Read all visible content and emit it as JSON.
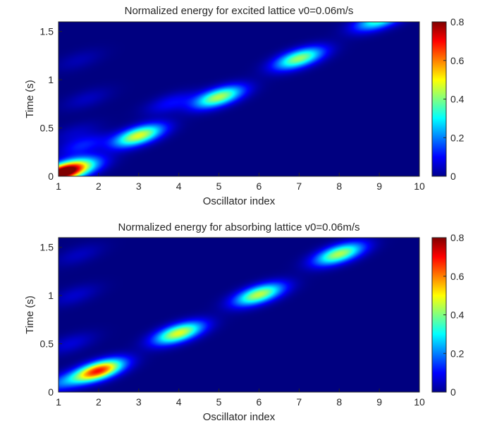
{
  "chart_data": [
    {
      "type": "heatmap",
      "title": "Normalized energy for excited lattice v0=0.06m/s",
      "xlabel": "Oscillator index",
      "ylabel": "Time (s)",
      "xlim": [
        1,
        10
      ],
      "ylim": [
        0,
        1.6
      ],
      "xticks": [
        "1",
        "2",
        "3",
        "4",
        "5",
        "6",
        "7",
        "8",
        "9",
        "10"
      ],
      "yticks": [
        "0",
        "0.5",
        "1",
        "1.5"
      ],
      "colorbar": {
        "range": [
          0,
          0.8
        ],
        "ticks": [
          "0",
          "0.2",
          "0.4",
          "0.6",
          "0.8"
        ],
        "colormap": "jet"
      },
      "blobs": [
        {
          "x": 1.05,
          "t": 0.03,
          "value": 0.8
        },
        {
          "x": 1.6,
          "t": 0.08,
          "value": 0.18
        },
        {
          "x": 1.3,
          "t": 0.1,
          "value": 0.12
        },
        {
          "x": 3.0,
          "t": 0.42,
          "value": 0.48
        },
        {
          "x": 1.6,
          "t": 0.32,
          "value": 0.12
        },
        {
          "x": 1.4,
          "t": 0.45,
          "value": 0.05
        },
        {
          "x": 5.0,
          "t": 0.82,
          "value": 0.44
        },
        {
          "x": 3.8,
          "t": 0.76,
          "value": 0.1
        },
        {
          "x": 1.7,
          "t": 0.8,
          "value": 0.05
        },
        {
          "x": 7.0,
          "t": 1.22,
          "value": 0.42
        },
        {
          "x": 1.5,
          "t": 1.2,
          "value": 0.04
        },
        {
          "x": 9.0,
          "t": 1.62,
          "value": 0.35
        }
      ]
    },
    {
      "type": "heatmap",
      "title": "Normalized energy for absorbing lattice v0=0.06m/s",
      "xlabel": "Oscillator index",
      "ylabel": "Time (s)",
      "xlim": [
        1,
        10
      ],
      "ylim": [
        0,
        1.6
      ],
      "xticks": [
        "1",
        "2",
        "3",
        "4",
        "5",
        "6",
        "7",
        "8",
        "9",
        "10"
      ],
      "yticks": [
        "0",
        "0.5",
        "1",
        "1.5"
      ],
      "colorbar": {
        "range": [
          0,
          0.8
        ],
        "ticks": [
          "0",
          "0.2",
          "0.4",
          "0.6",
          "0.8"
        ],
        "colormap": "jet"
      },
      "blobs": [
        {
          "x": 2.0,
          "t": 0.22,
          "value": 0.68
        },
        {
          "x": 1.1,
          "t": 0.1,
          "value": 0.15
        },
        {
          "x": 4.0,
          "t": 0.61,
          "value": 0.48
        },
        {
          "x": 1.3,
          "t": 0.5,
          "value": 0.07
        },
        {
          "x": 6.0,
          "t": 1.01,
          "value": 0.45
        },
        {
          "x": 1.4,
          "t": 1.0,
          "value": 0.06
        },
        {
          "x": 8.0,
          "t": 1.43,
          "value": 0.44
        },
        {
          "x": 1.5,
          "t": 1.42,
          "value": 0.05
        }
      ]
    }
  ]
}
